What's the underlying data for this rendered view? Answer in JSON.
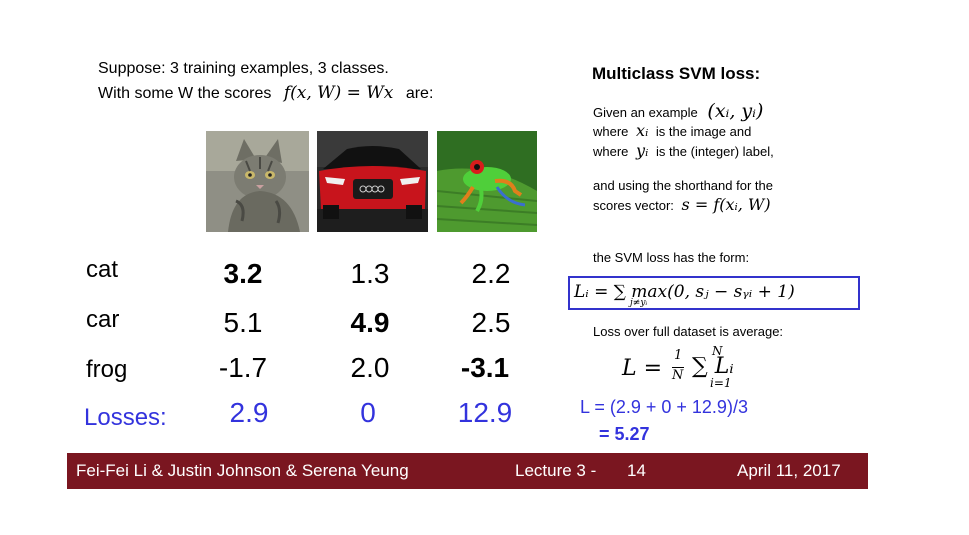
{
  "intro": {
    "line1": "Suppose: 3 training examples, 3 classes.",
    "line2_prefix": "With some W the scores",
    "line2_formula": "f(x, W) = Wx",
    "line2_suffix": "are:"
  },
  "images": [
    {
      "label": "cat",
      "icon": "cat-photo"
    },
    {
      "label": "car",
      "icon": "car-photo"
    },
    {
      "label": "frog",
      "icon": "frog-photo"
    }
  ],
  "scores": {
    "rows": [
      {
        "label": "cat",
        "values": [
          "3.2",
          "1.3",
          "2.2"
        ],
        "bold_index": 0
      },
      {
        "label": "car",
        "values": [
          "5.1",
          "4.9",
          "2.5"
        ],
        "bold_index": 1
      },
      {
        "label": "frog",
        "values": [
          "-1.7",
          "2.0",
          "-3.1"
        ],
        "bold_index": 2
      }
    ],
    "losses_label": "Losses:",
    "losses": [
      "2.9",
      "0",
      "12.9"
    ]
  },
  "svm": {
    "title": "Multiclass SVM loss:",
    "given_prefix": "Given an example",
    "given_math": "(xᵢ, yᵢ)",
    "where1_prefix": "where",
    "where1_math": "xᵢ",
    "where1_suffix": "is the image and",
    "where2_prefix": "where",
    "where2_math": "yᵢ",
    "where2_suffix": "is the (integer) label,",
    "shorthand": "and using the shorthand for the",
    "scores_prefix": "scores vector:",
    "scores_math": "s = f(xᵢ, W)",
    "loss_form": "the SVM loss has the form:",
    "loss_formula": "Lᵢ = ∑ max(0, sⱼ − sᵧᵢ + 1)",
    "loss_formula_sub": "j≠yᵢ",
    "average": "Loss over full dataset is average:",
    "average_formula": "L = ",
    "average_formula_rest": "∑ Lᵢ",
    "average_frac_num": "1",
    "average_frac_den": "N",
    "average_sum_top": "N",
    "average_sum_bottom": "i=1",
    "calc_line1": "L = (2.9 + 0 + 12.9)/3",
    "calc_line2": "= 5.27",
    "box_color": "#3333cc",
    "accent_color": "#3333dd"
  },
  "footer": {
    "authors": "Fei-Fei Li & Justin Johnson & Serena Yeung",
    "lecture": "Lecture 3 -",
    "slide_number": "14",
    "date": "April 11, 2017",
    "bar_color": "#7a1620"
  }
}
